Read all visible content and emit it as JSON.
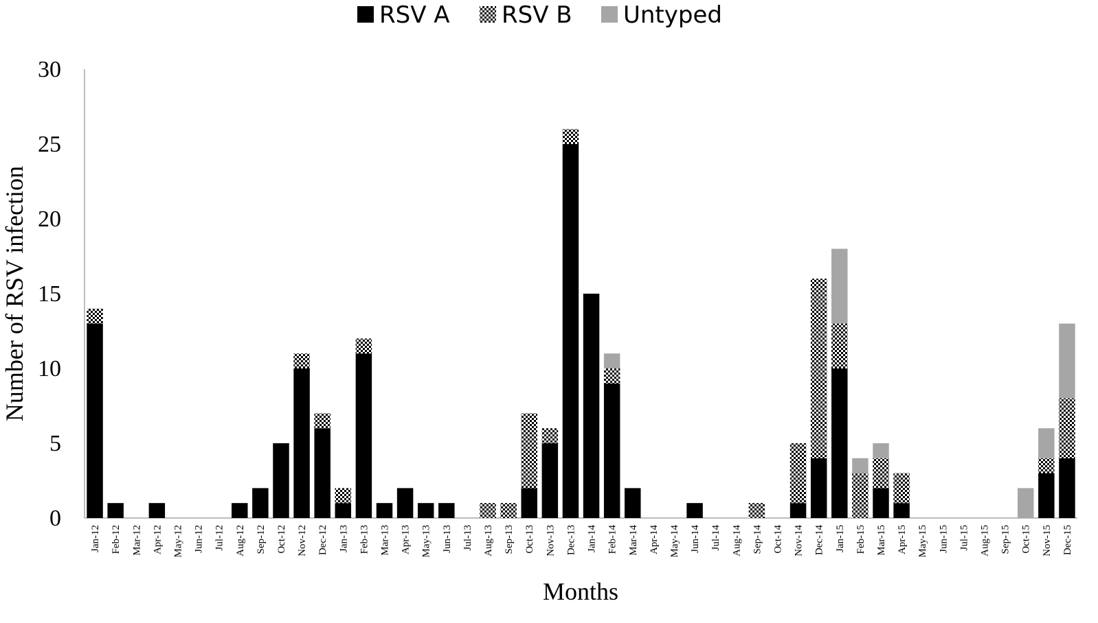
{
  "chart_data": {
    "type": "bar",
    "stacked": true,
    "title": "",
    "xlabel": "Months",
    "ylabel": "Number of RSV infection",
    "ylim": [
      0,
      30
    ],
    "yticks": [
      0,
      5,
      10,
      15,
      20,
      25,
      30
    ],
    "grid": false,
    "legend_position": "top-center",
    "categories": [
      "Jan-12",
      "Feb-12",
      "Mar-12",
      "Apr-12",
      "May-12",
      "Jun-12",
      "Jul-12",
      "Aug-12",
      "Sep-12",
      "Oct-12",
      "Nov-12",
      "Dec-12",
      "Jan-13",
      "Feb-13",
      "Mar-13",
      "Apr-13",
      "May-13",
      "Jun-13",
      "Jul-13",
      "Aug-13",
      "Sep-13",
      "Oct-13",
      "Nov-13",
      "Dec-13",
      "Jan-14",
      "Feb-14",
      "Mar-14",
      "Apr-14",
      "May-14",
      "Jun-14",
      "Jul-14",
      "Aug-14",
      "Sep-14",
      "Oct-14",
      "Nov-14",
      "Dec-14",
      "Jan-15",
      "Feb-15",
      "Mar-15",
      "Apr-15",
      "May-15",
      "Jun-15",
      "Jul-15",
      "Aug-15",
      "Sep-15",
      "Oct-15",
      "Nov-15",
      "Dec-15"
    ],
    "series": [
      {
        "name": "RSV A",
        "color": "#000000",
        "pattern": "solid",
        "values": [
          13,
          1,
          0,
          1,
          0,
          0,
          0,
          1,
          2,
          5,
          10,
          6,
          1,
          11,
          1,
          2,
          1,
          1,
          0,
          0,
          0,
          2,
          5,
          25,
          15,
          9,
          2,
          0,
          0,
          1,
          0,
          0,
          0,
          0,
          1,
          4,
          10,
          0,
          2,
          1,
          0,
          0,
          0,
          0,
          0,
          0,
          3,
          4
        ]
      },
      {
        "name": "RSV B",
        "color": "#000000",
        "pattern": "checker",
        "values": [
          1,
          0,
          0,
          0,
          0,
          0,
          0,
          0,
          0,
          0,
          1,
          1,
          1,
          1,
          0,
          0,
          0,
          0,
          0,
          1,
          1,
          5,
          1,
          1,
          0,
          1,
          0,
          0,
          0,
          0,
          0,
          0,
          1,
          0,
          4,
          12,
          3,
          3,
          2,
          2,
          0,
          0,
          0,
          0,
          0,
          0,
          1,
          4
        ]
      },
      {
        "name": "Untyped",
        "color": "#a6a6a6",
        "pattern": "solid",
        "values": [
          0,
          0,
          0,
          0,
          0,
          0,
          0,
          0,
          0,
          0,
          0,
          0,
          0,
          0,
          0,
          0,
          0,
          0,
          0,
          0,
          0,
          0,
          0,
          0,
          0,
          1,
          0,
          0,
          0,
          0,
          0,
          0,
          0,
          0,
          0,
          0,
          5,
          1,
          1,
          0,
          0,
          0,
          0,
          0,
          0,
          2,
          2,
          5
        ]
      }
    ]
  }
}
